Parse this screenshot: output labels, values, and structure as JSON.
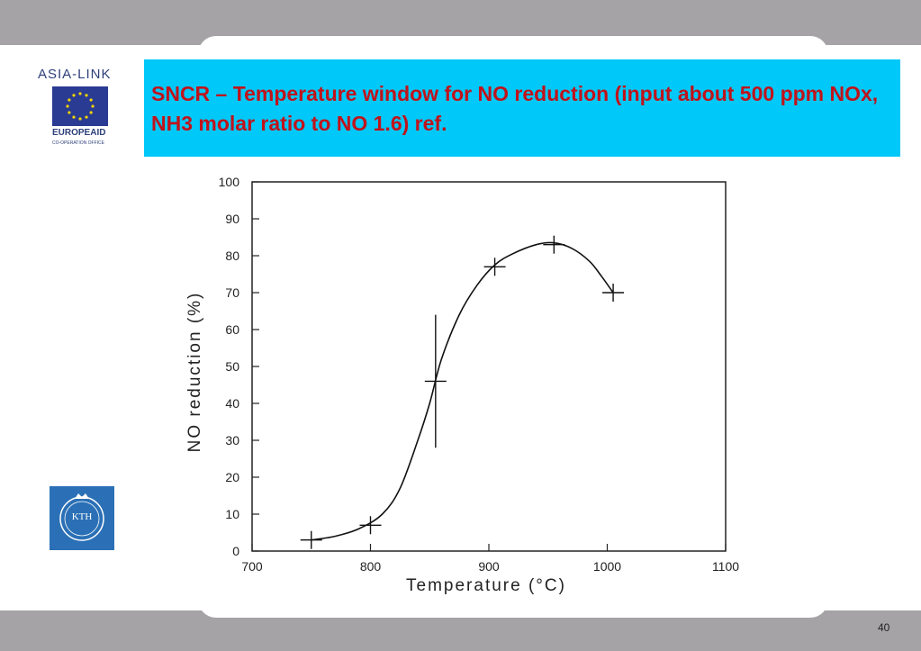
{
  "slide": {
    "title": "SNCR – Temperature window for NO reduction (input about 500 ppm NOx, NH3 molar ratio to NO 1.6) ref.",
    "page_number": "40"
  },
  "logos": {
    "asia_link": "ASIA-LINK",
    "europeaid": "EUROPEAID",
    "cooperation": "CO-OPERATION OFFICE",
    "kth": "KTH",
    "eu_flag_color": "#2a3b93",
    "kth_color": "#2b70b6"
  },
  "colors": {
    "title_bg": "#00c8f8",
    "title_text": "#c0131b",
    "frame": "#a5a3a6"
  },
  "chart_data": {
    "type": "line",
    "xlabel": "Temperature (°C)",
    "ylabel": "NO reduction (%)",
    "xlim": [
      700,
      1100
    ],
    "ylim": [
      0,
      100
    ],
    "x_ticks": [
      "700",
      "800",
      "900",
      "1000",
      "1100"
    ],
    "y_ticks": [
      "0",
      "10",
      "20",
      "30",
      "40",
      "50",
      "60",
      "70",
      "80",
      "90",
      "100"
    ],
    "grid": false,
    "points": [
      {
        "x": 750,
        "y": 3
      },
      {
        "x": 800,
        "y": 7
      },
      {
        "x": 855,
        "y": 46,
        "y_err_low": 28,
        "y_err_high": 64
      },
      {
        "x": 905,
        "y": 77
      },
      {
        "x": 955,
        "y": 83
      },
      {
        "x": 1005,
        "y": 70
      }
    ],
    "curve": [
      [
        750,
        3
      ],
      [
        770,
        4
      ],
      [
        790,
        6
      ],
      [
        810,
        10
      ],
      [
        825,
        17
      ],
      [
        840,
        30
      ],
      [
        850,
        40
      ],
      [
        860,
        52
      ],
      [
        875,
        64
      ],
      [
        890,
        72
      ],
      [
        905,
        77.5
      ],
      [
        920,
        80.5
      ],
      [
        940,
        83
      ],
      [
        955,
        83.5
      ],
      [
        970,
        82
      ],
      [
        985,
        78.5
      ],
      [
        995,
        74.5
      ],
      [
        1005,
        70
      ]
    ]
  }
}
